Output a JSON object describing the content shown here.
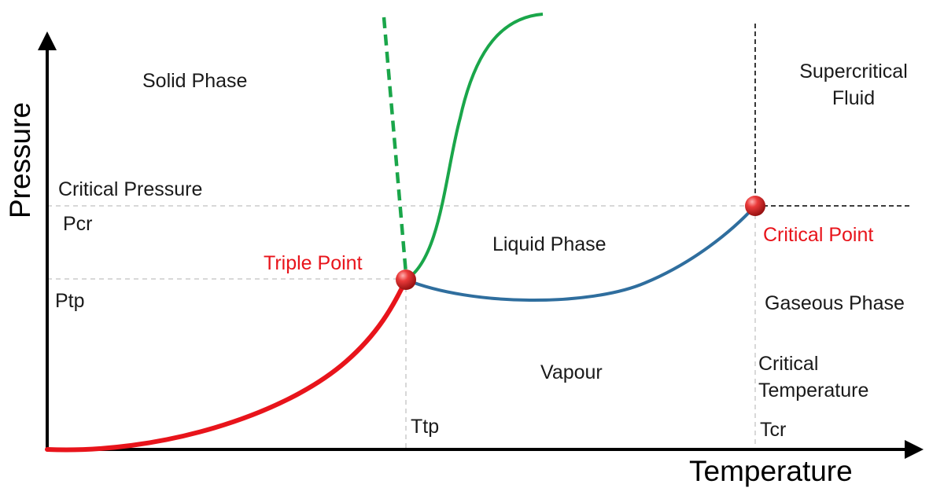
{
  "axes": {
    "y_title": "Pressure",
    "x_title": "Temperature"
  },
  "regions": {
    "solid": "Solid Phase",
    "liquid": "Liquid Phase",
    "supercritical_line1": "Supercritical",
    "supercritical_line2": "Fluid",
    "gaseous": "Gaseous Phase",
    "vapour": "Vapour"
  },
  "levels": {
    "critical_pressure": "Critical Pressure",
    "pcr": "Pcr",
    "ptp": "Ptp",
    "ttp": "Ttp",
    "critical_temperature_line1": "Critical",
    "critical_temperature_line2": "Temperature",
    "tcr": "Tcr"
  },
  "points": {
    "triple": "Triple Point",
    "critical": "Critical Point"
  },
  "colors": {
    "sublimation_curve": "#e8141b",
    "vaporization_curve": "#2f6e9e",
    "fusion_curve": "#1aa64a",
    "point_marker": "#e8141b",
    "point_label": "#e8141b",
    "guide_lines": "#cccccc",
    "axis": "#000000"
  }
}
